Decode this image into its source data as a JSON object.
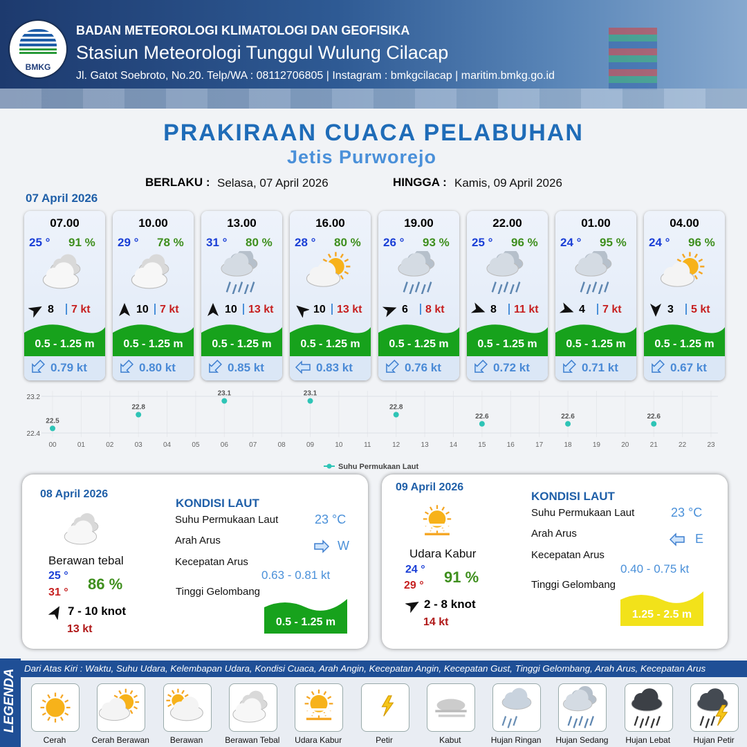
{
  "header": {
    "logo": "BMKG",
    "agency": "BADAN METEOROLOGI KLIMATOLOGI DAN GEOFISIKA",
    "station": "Stasiun Meteorologi Tunggul Wulung Cilacap",
    "address": "Jl. Gatot Soebroto, No.20. Telp/WA : 08112706805 | Instagram : bmkgcilacap | maritim.bmkg.go.id"
  },
  "title": "PRAKIRAAN CUACA PELABUHAN",
  "location": "Jetis Purworejo",
  "validity": {
    "from_label": "BERLAKU :",
    "from": "Selasa, 07 April 2026",
    "to_label": "HINGGA :",
    "to": "Kamis, 09 April 2026"
  },
  "day1_date": "07 April 2026",
  "cards": [
    {
      "time": "07.00",
      "temp": "25 °",
      "humidity": "91 %",
      "wind": "8",
      "gust": "7 kt",
      "wave": "0.5 - 1.25 m",
      "current": "0.79 kt"
    },
    {
      "time": "10.00",
      "temp": "29 °",
      "humidity": "78 %",
      "wind": "10",
      "gust": "7 kt",
      "wave": "0.5 - 1.25 m",
      "current": "0.80 kt"
    },
    {
      "time": "13.00",
      "temp": "31 °",
      "humidity": "80 %",
      "wind": "10",
      "gust": "13 kt",
      "wave": "0.5 - 1.25 m",
      "current": "0.85 kt"
    },
    {
      "time": "16.00",
      "temp": "28 °",
      "humidity": "80 %",
      "wind": "10",
      "gust": "13 kt",
      "wave": "0.5 - 1.25 m",
      "current": "0.83 kt"
    },
    {
      "time": "19.00",
      "temp": "26 °",
      "humidity": "93 %",
      "wind": "6",
      "gust": "8 kt",
      "wave": "0.5 - 1.25 m",
      "current": "0.76 kt"
    },
    {
      "time": "22.00",
      "temp": "25 °",
      "humidity": "96 %",
      "wind": "8",
      "gust": "11 kt",
      "wave": "0.5 - 1.25 m",
      "current": "0.72 kt"
    },
    {
      "time": "01.00",
      "temp": "24 °",
      "humidity": "95 %",
      "wind": "4",
      "gust": "7 kt",
      "wave": "0.5 - 1.25 m",
      "current": "0.71 kt"
    },
    {
      "time": "04.00",
      "temp": "24 °",
      "humidity": "96 %",
      "wind": "3",
      "gust": "5 kt",
      "wave": "0.5 - 1.25 m",
      "current": "0.67 kt"
    }
  ],
  "chart_data": {
    "type": "scatter",
    "x": [
      0,
      3,
      6,
      9,
      12,
      15,
      18,
      21
    ],
    "values": [
      22.5,
      22.8,
      23.1,
      23.1,
      22.8,
      22.6,
      22.6,
      22.6
    ],
    "color": "#2ec4b6",
    "legend": "Suhu Permukaan Laut",
    "xlim": [
      0,
      23
    ],
    "xticks": [
      {
        "value": 0,
        "label": "00"
      },
      {
        "value": 1,
        "label": "01"
      },
      {
        "value": 2,
        "label": "02"
      },
      {
        "value": 3,
        "label": "03"
      },
      {
        "value": 4,
        "label": "04"
      },
      {
        "value": 5,
        "label": "05"
      },
      {
        "value": 6,
        "label": "06"
      },
      {
        "value": 7,
        "label": "07"
      },
      {
        "value": 8,
        "label": "08"
      },
      {
        "value": 9,
        "label": "09"
      },
      10,
      11,
      12,
      13,
      14,
      15,
      16,
      17,
      18,
      19,
      20,
      21,
      22,
      23
    ],
    "ylim": [
      22.4,
      23.2
    ],
    "yticks": [
      22.4,
      23.2
    ],
    "grid": true
  },
  "days": [
    {
      "date": "08 April 2026",
      "weather": "Berawan tebal",
      "temp_min": "25 °",
      "temp_max": "31 °",
      "humidity": "86 %",
      "wind": "7  - 10 knot",
      "gust": "13 kt",
      "heading": "KONDISI LAUT",
      "sst_label": "Suhu Permukaan Laut",
      "sst": "23 °C",
      "dir_label": "Arah Arus",
      "dir": "W",
      "speed_label": "Kecepatan Arus",
      "speed": "0.63 -  0.81 kt",
      "wave_label": "Tinggi Gelombang",
      "wave": "0.5 - 1.25 m"
    },
    {
      "date": "09 April 2026",
      "weather": "Udara Kabur",
      "temp_min": "24 °",
      "temp_max": "29 °",
      "humidity": "91 %",
      "wind": "2  - 8 knot",
      "gust": "14 kt",
      "heading": "KONDISI LAUT",
      "sst_label": "Suhu Permukaan Laut",
      "sst": "23 °C",
      "dir_label": "Arah Arus",
      "dir": "E",
      "speed_label": "Kecepatan Arus",
      "speed": "0.40 - 0.75 kt",
      "wave_label": "Tinggi Gelombang",
      "wave": "1.25 - 2.5 m"
    }
  ],
  "legend": {
    "title": "LEGENDA",
    "description": "Dari Atas Kiri : Waktu, Suhu Udara, Kelembapan Udara, Kondisi Cuaca, Arah Angin, Kecepatan Angin, Kecepatan Gust, Tinggi Gelombang, Arah Arus, Kecepatan Arus",
    "items": [
      "Cerah",
      "Cerah Berawan",
      "Berawan",
      "Berawan Tebal",
      "Udara Kabur",
      "Petir",
      "Kabut",
      "Hujan Ringan",
      "Hujan Sedang",
      "Hujan Lebat",
      "Hujan Petir"
    ]
  }
}
